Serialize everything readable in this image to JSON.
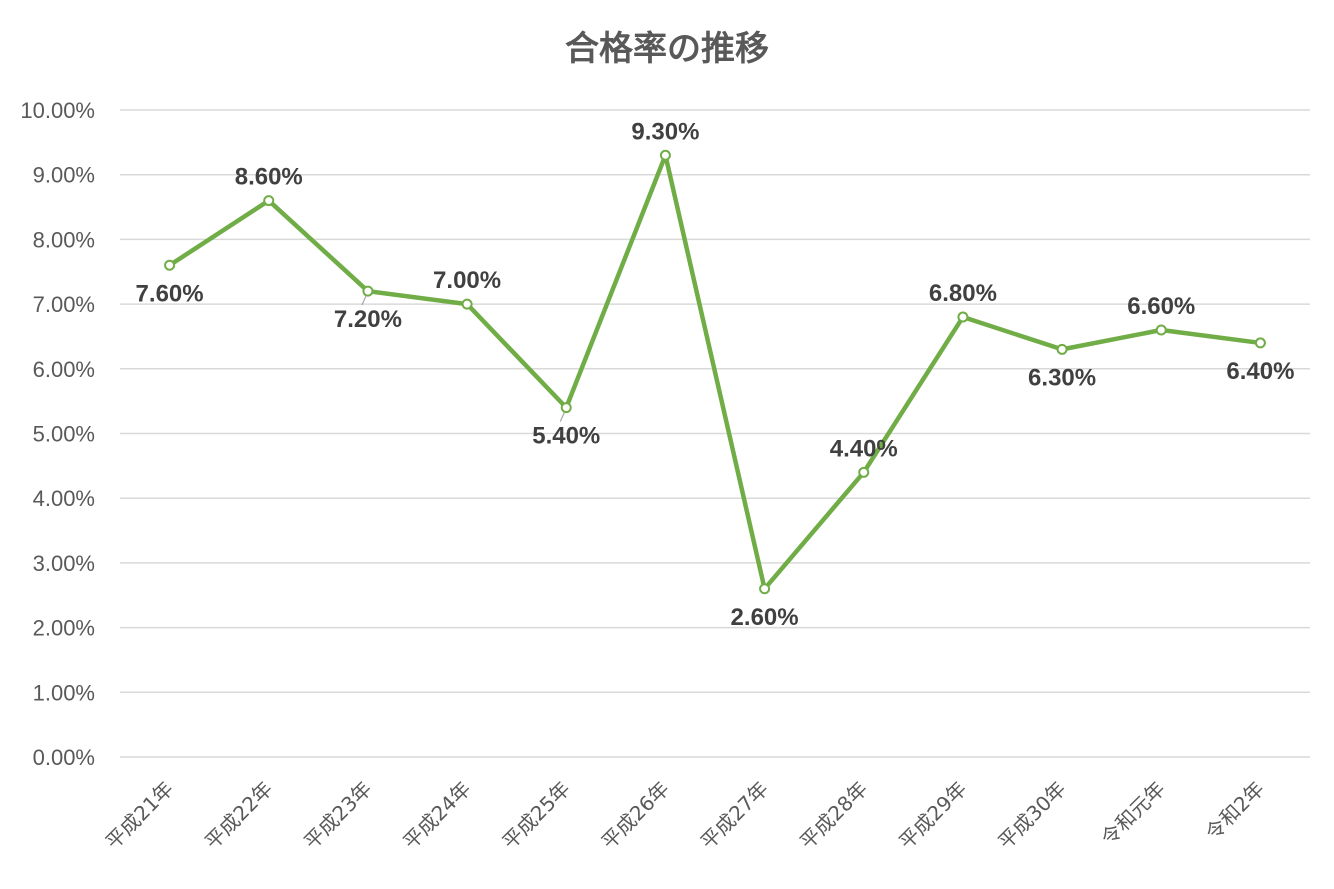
{
  "chart_data": {
    "type": "line",
    "title": "合格率の推移",
    "categories": [
      "平成21年",
      "平成22年",
      "平成23年",
      "平成24年",
      "平成25年",
      "平成26年",
      "平成27年",
      "平成28年",
      "平成29年",
      "平成30年",
      "令和元年",
      "令和2年"
    ],
    "series": [
      {
        "values": [
          7.6,
          8.6,
          7.2,
          7.0,
          5.4,
          9.3,
          2.6,
          4.4,
          6.8,
          6.3,
          6.6,
          6.4
        ],
        "labels": [
          "7.60%",
          "8.60%",
          "7.20%",
          "7.00%",
          "5.40%",
          "9.30%",
          "2.60%",
          "4.40%",
          "6.80%",
          "6.30%",
          "6.60%",
          "6.40%"
        ],
        "color": "#70ad47"
      }
    ],
    "yticks": [
      "0.00%",
      "1.00%",
      "2.00%",
      "3.00%",
      "4.00%",
      "5.00%",
      "6.00%",
      "7.00%",
      "8.00%",
      "9.00%",
      "10.00%"
    ],
    "ylim": [
      0,
      10
    ],
    "grid": true,
    "legend": "none"
  }
}
